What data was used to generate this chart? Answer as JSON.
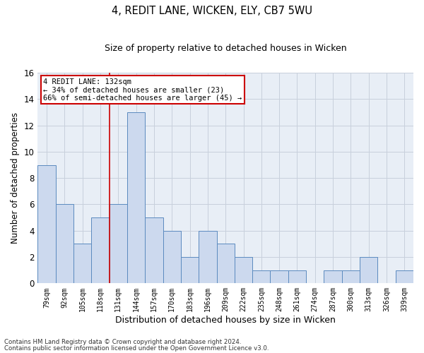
{
  "title1": "4, REDIT LANE, WICKEN, ELY, CB7 5WU",
  "title2": "Size of property relative to detached houses in Wicken",
  "xlabel": "Distribution of detached houses by size in Wicken",
  "ylabel": "Number of detached properties",
  "categories": [
    "79sqm",
    "92sqm",
    "105sqm",
    "118sqm",
    "131sqm",
    "144sqm",
    "157sqm",
    "170sqm",
    "183sqm",
    "196sqm",
    "209sqm",
    "222sqm",
    "235sqm",
    "248sqm",
    "261sqm",
    "274sqm",
    "287sqm",
    "300sqm",
    "313sqm",
    "326sqm",
    "339sqm"
  ],
  "values": [
    9,
    6,
    3,
    5,
    6,
    13,
    5,
    4,
    2,
    4,
    3,
    2,
    1,
    1,
    1,
    0,
    1,
    1,
    2,
    0,
    1
  ],
  "bar_color": "#ccd9ee",
  "bar_edge_color": "#5b8abf",
  "vline_color": "#cc0000",
  "vline_x_index": 4,
  "annotation_line1": "4 REDIT LANE: 132sqm",
  "annotation_line2": "← 34% of detached houses are smaller (23)",
  "annotation_line3": "66% of semi-detached houses are larger (45) →",
  "annotation_box_color": "#cc0000",
  "ylim": [
    0,
    16
  ],
  "yticks": [
    0,
    2,
    4,
    6,
    8,
    10,
    12,
    14,
    16
  ],
  "footer1": "Contains HM Land Registry data © Crown copyright and database right 2024.",
  "footer2": "Contains public sector information licensed under the Open Government Licence v3.0.",
  "grid_color": "#c8d0dc",
  "background_color": "#e8eef6"
}
